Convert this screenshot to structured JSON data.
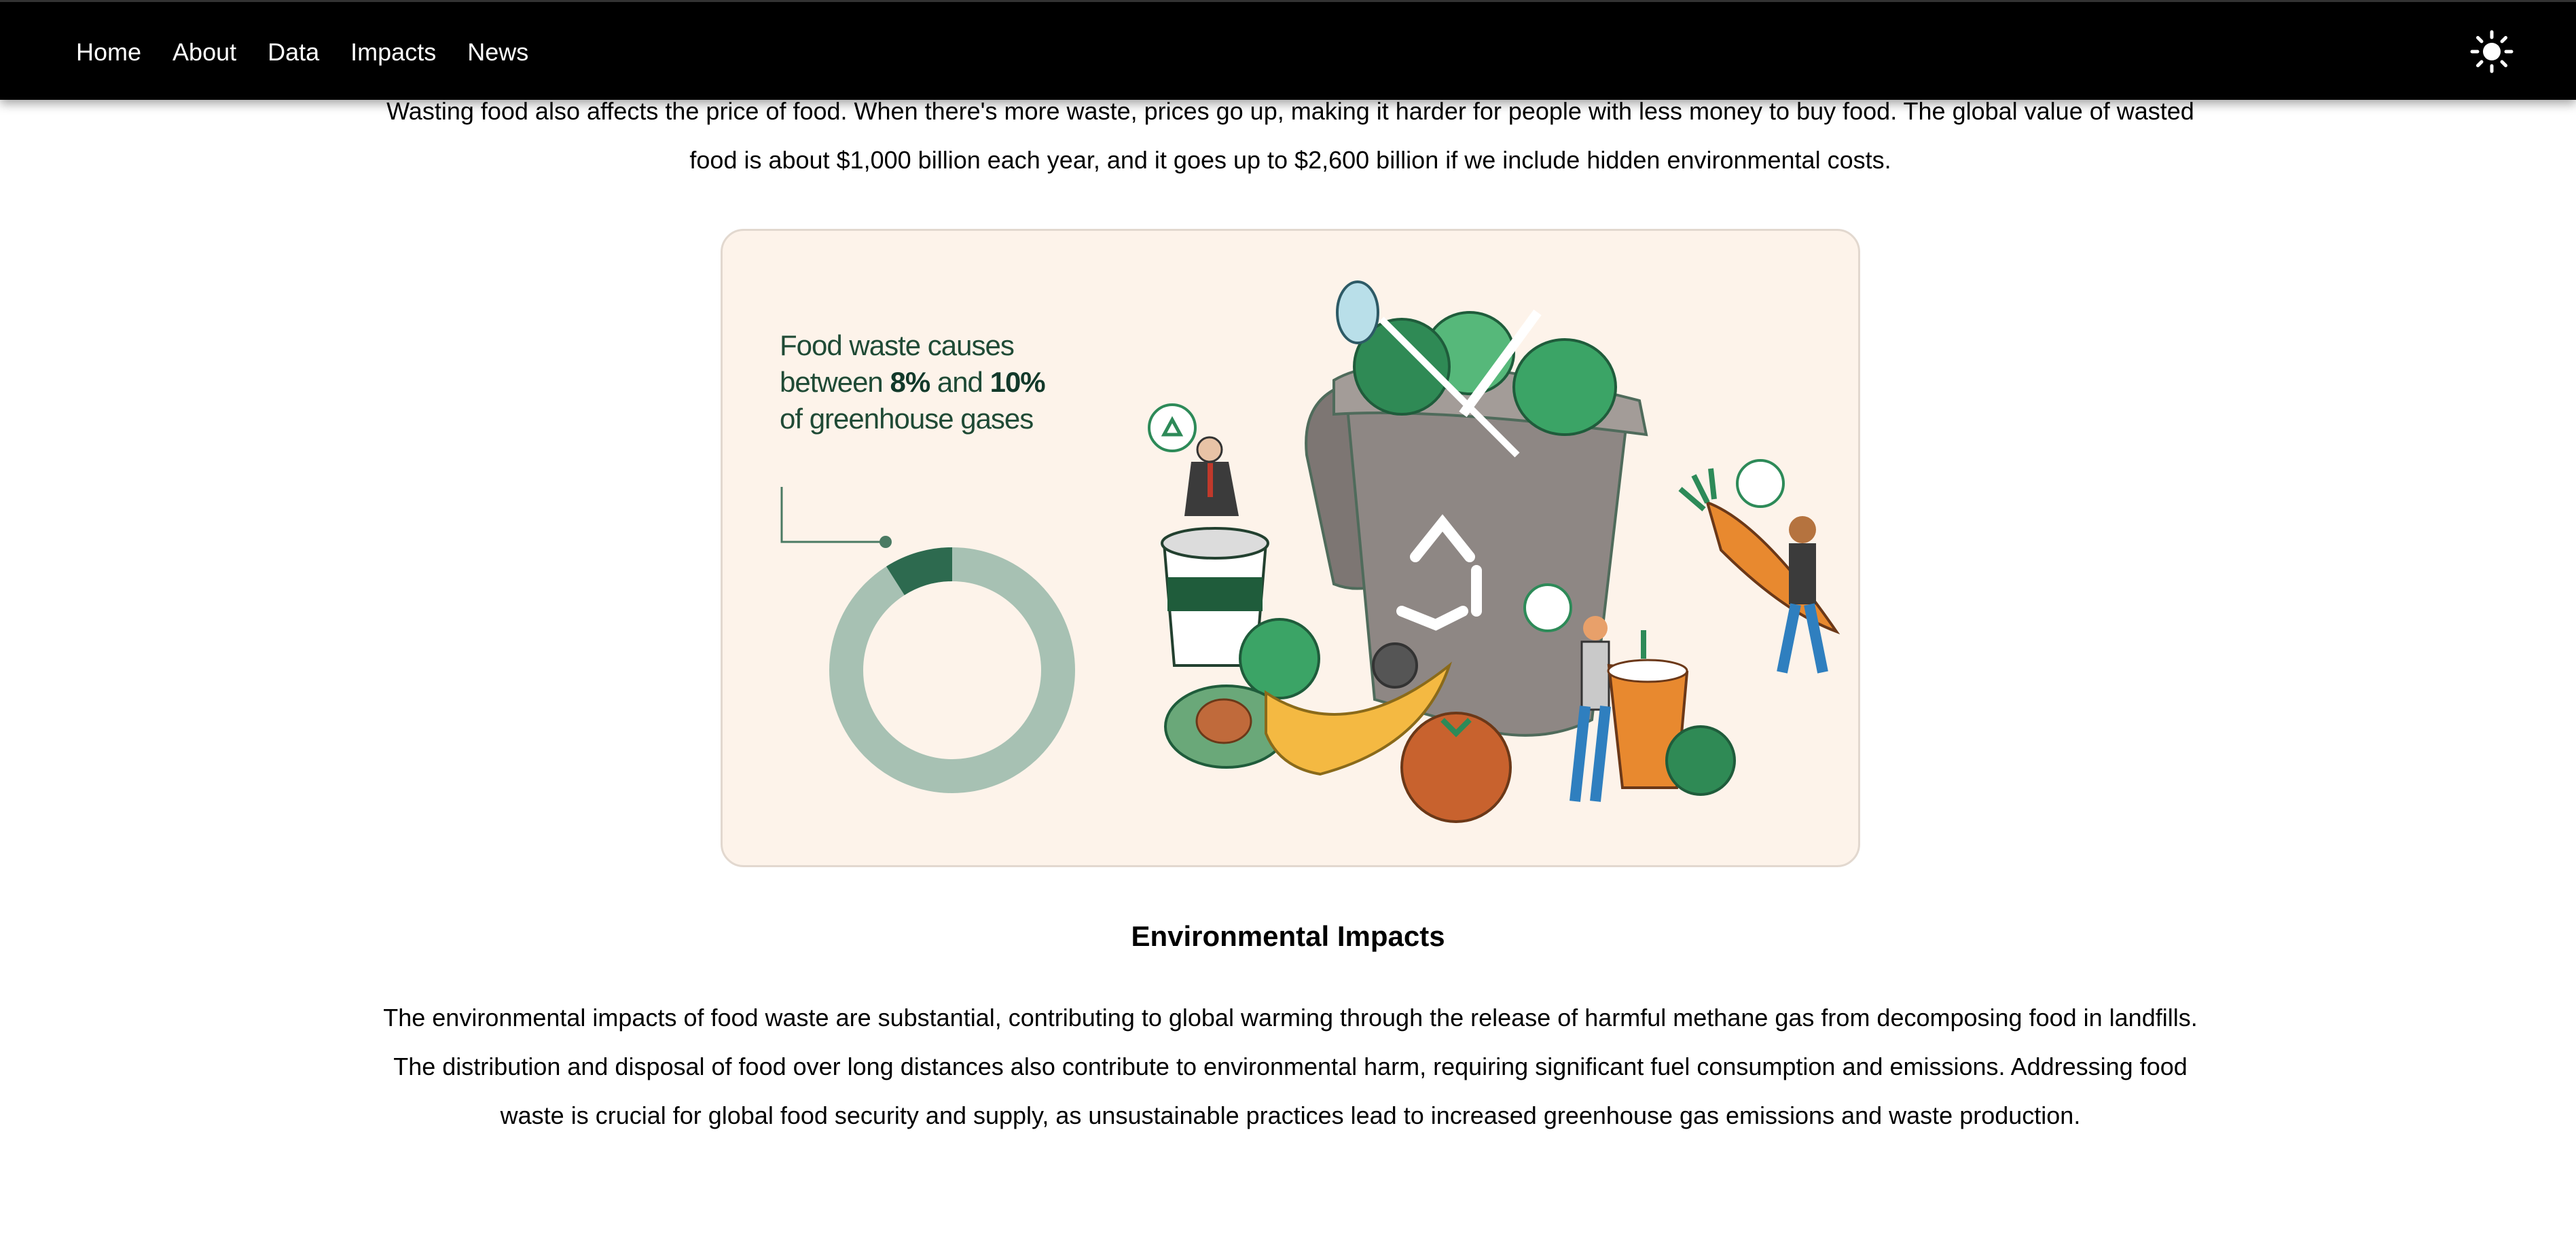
{
  "nav": {
    "links": [
      "Home",
      "About",
      "Data",
      "Impacts",
      "News"
    ],
    "theme_toggle_icon": "sun-icon"
  },
  "intro": {
    "text": "Wasting food also affects the price of food. When there's more waste, prices go up, making it harder for people with less money to buy food. The global value of wasted food is about $1,000 billion each year, and it goes up to $2,600 billion if we include hidden environmental costs."
  },
  "figure": {
    "caption_part1": "Food waste causes between ",
    "caption_pct1": "8%",
    "caption_part2": " and ",
    "caption_pct2": "10%",
    "caption_part3": " of greenhouse gases",
    "donut_share": 0.09,
    "colors": {
      "background": "#fdf3ea",
      "donut_highlight": "#2d6a4f",
      "donut_rest": "#a7c1b3"
    }
  },
  "section": {
    "heading": "Environmental Impacts",
    "body": "The environmental impacts of food waste are substantial, contributing to global warming through the release of harmful methane gas from decomposing food in landfills. The distribution and disposal of food over long distances also contribute to environmental harm, requiring significant fuel consumption and emissions. Addressing food waste is crucial for global food security and supply, as unsustainable practices lead to increased greenhouse gas emissions and waste production."
  }
}
